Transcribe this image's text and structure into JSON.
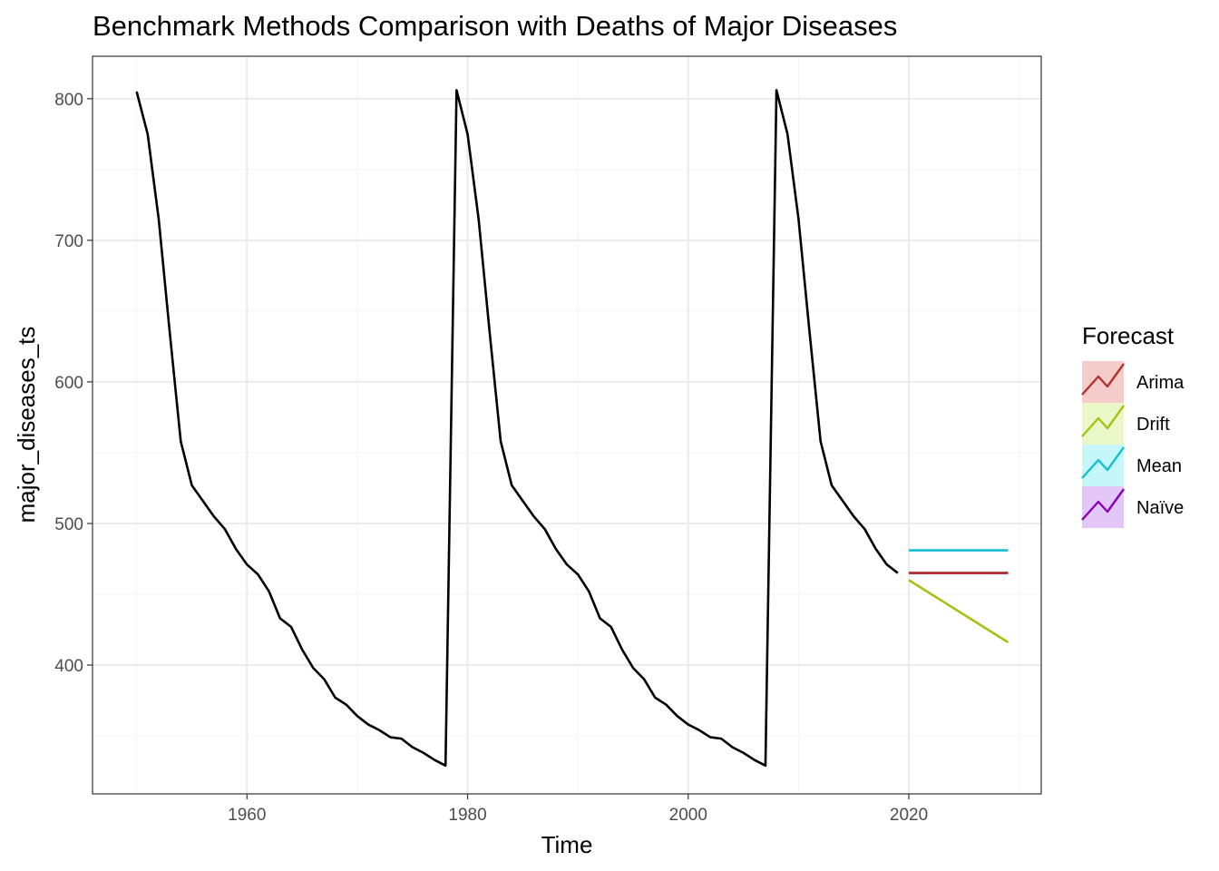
{
  "chart_data": {
    "type": "line",
    "title": "Benchmark Methods Comparison with Deaths of Major Diseases",
    "xlabel": "Time",
    "ylabel": "major_diseases_ts",
    "xlim": [
      1946,
      2032
    ],
    "ylim": [
      309,
      830
    ],
    "x_ticks": [
      1960,
      1980,
      2000,
      2020
    ],
    "x_tick_labels": [
      "1960",
      "1980",
      "2000",
      "2020"
    ],
    "y_ticks": [
      400,
      500,
      600,
      700,
      800
    ],
    "y_tick_labels": [
      "400",
      "500",
      "600",
      "700",
      "800"
    ],
    "grid": true,
    "legend": {
      "title": "Forecast",
      "position": "right"
    },
    "history": {
      "color": "#000000",
      "x_start": 1950,
      "values": [
        805,
        775,
        715,
        635,
        558,
        527,
        516,
        505,
        496,
        482,
        471,
        464,
        452,
        433,
        427,
        411,
        398,
        390,
        377,
        372,
        364,
        358,
        354,
        349,
        348,
        342,
        338,
        333,
        329,
        806,
        775,
        715,
        635,
        558,
        527,
        516,
        505,
        496,
        482,
        471,
        464,
        452,
        433,
        427,
        411,
        398,
        390,
        377,
        372,
        364,
        358,
        354,
        349,
        348,
        342,
        338,
        333,
        329,
        806,
        775,
        715,
        635,
        558,
        527,
        516,
        505,
        496,
        482,
        471,
        465
      ]
    },
    "series": [
      {
        "name": "Arima",
        "color": "#b2322c",
        "fill": "#f4cdcb",
        "x": [
          2020,
          2029
        ],
        "values": [
          465,
          465
        ]
      },
      {
        "name": "Drift",
        "color": "#a3c313",
        "fill": "#eaf7c9",
        "x": [
          2020,
          2029
        ],
        "values": [
          460,
          416
        ]
      },
      {
        "name": "Mean",
        "color": "#17becf",
        "fill": "#c5f7f9",
        "x": [
          2020,
          2029
        ],
        "values": [
          481,
          481
        ]
      },
      {
        "name": "Naïve",
        "color": "#8b00b9",
        "fill": "#e2c7f8",
        "x": [
          2020,
          2029
        ],
        "values": [
          465,
          465
        ]
      }
    ]
  }
}
